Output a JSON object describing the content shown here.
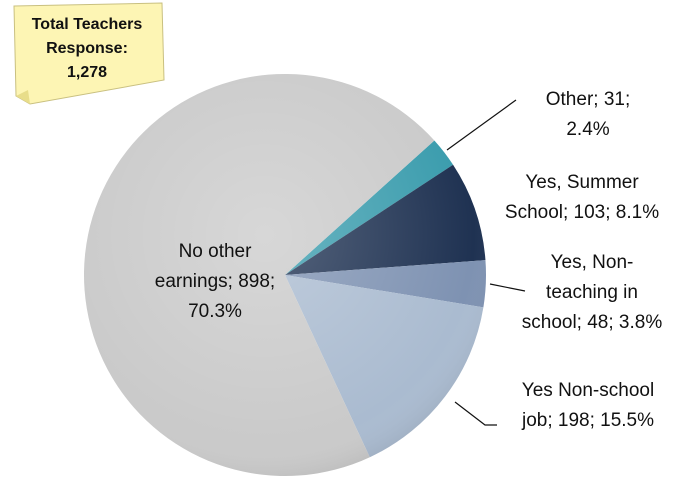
{
  "chart_data": {
    "type": "pie",
    "annotation": [
      "Total Teachers",
      "Response:",
      "1,278"
    ],
    "values": [
      31,
      103,
      48,
      198,
      898
    ],
    "value_labels": [
      [
        "Other; 31;",
        "2.4%"
      ],
      [
        "Yes, Summer",
        "School; 103; 8.1%"
      ],
      [
        "Yes, Non-",
        "teaching in",
        "school; 48; 3.8%"
      ],
      [
        "Yes Non-school",
        "job; 198; 15.5%"
      ],
      [
        "No other",
        "earnings; 898;",
        "70.3%"
      ]
    ],
    "colors": [
      "#3a9cad",
      "#1f3252",
      "#7e92b2",
      "#aabbd0",
      "#cacaca"
    ]
  }
}
